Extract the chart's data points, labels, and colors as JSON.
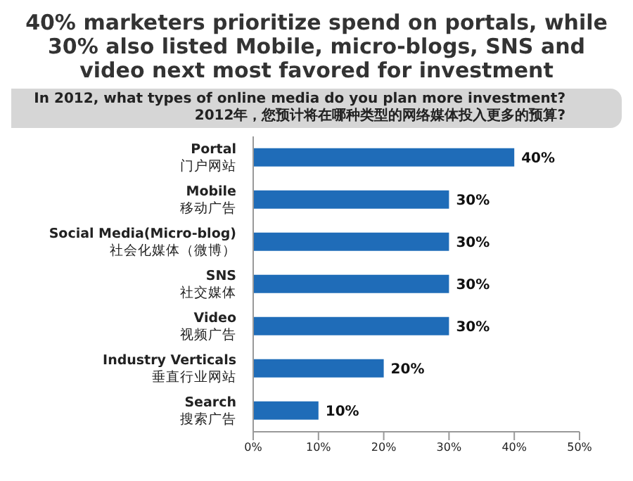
{
  "chart_data": {
    "type": "bar",
    "orientation": "horizontal",
    "title": "40% marketers prioritize spend on portals, while 30% also listed Mobile, micro-blogs, SNS and video next most favored for investment",
    "subtitle": "In 2012, what types of online media do you plan more investment?\n2012年，您预计将在哪种类型的网络媒体投入更多的预算?",
    "categories": [
      "Portal\n门户网站",
      "Mobile\n移动广告",
      "Social Media(Micro-blog)\n社会化媒体（微博）",
      "SNS\n社交媒体",
      "Video\n视频广告",
      "Industry Verticals\n垂直行业网站",
      "Search\n搜索广告"
    ],
    "values": [
      40,
      30,
      30,
      30,
      30,
      20,
      10
    ],
    "value_labels": [
      "40%",
      "30%",
      "30%",
      "30%",
      "30%",
      "20%",
      "10%"
    ],
    "color": "#1f6cb8",
    "xlim": [
      0,
      50
    ],
    "xticks": [
      {
        "value": 0,
        "label": "0%"
      },
      {
        "value": 10,
        "label": "10%"
      },
      {
        "value": 20,
        "label": "20%"
      },
      {
        "value": 30,
        "label": "30%"
      },
      {
        "value": 40,
        "label": "40%"
      },
      {
        "value": 50,
        "label": "50%"
      }
    ],
    "grid": false,
    "legend": false
  }
}
